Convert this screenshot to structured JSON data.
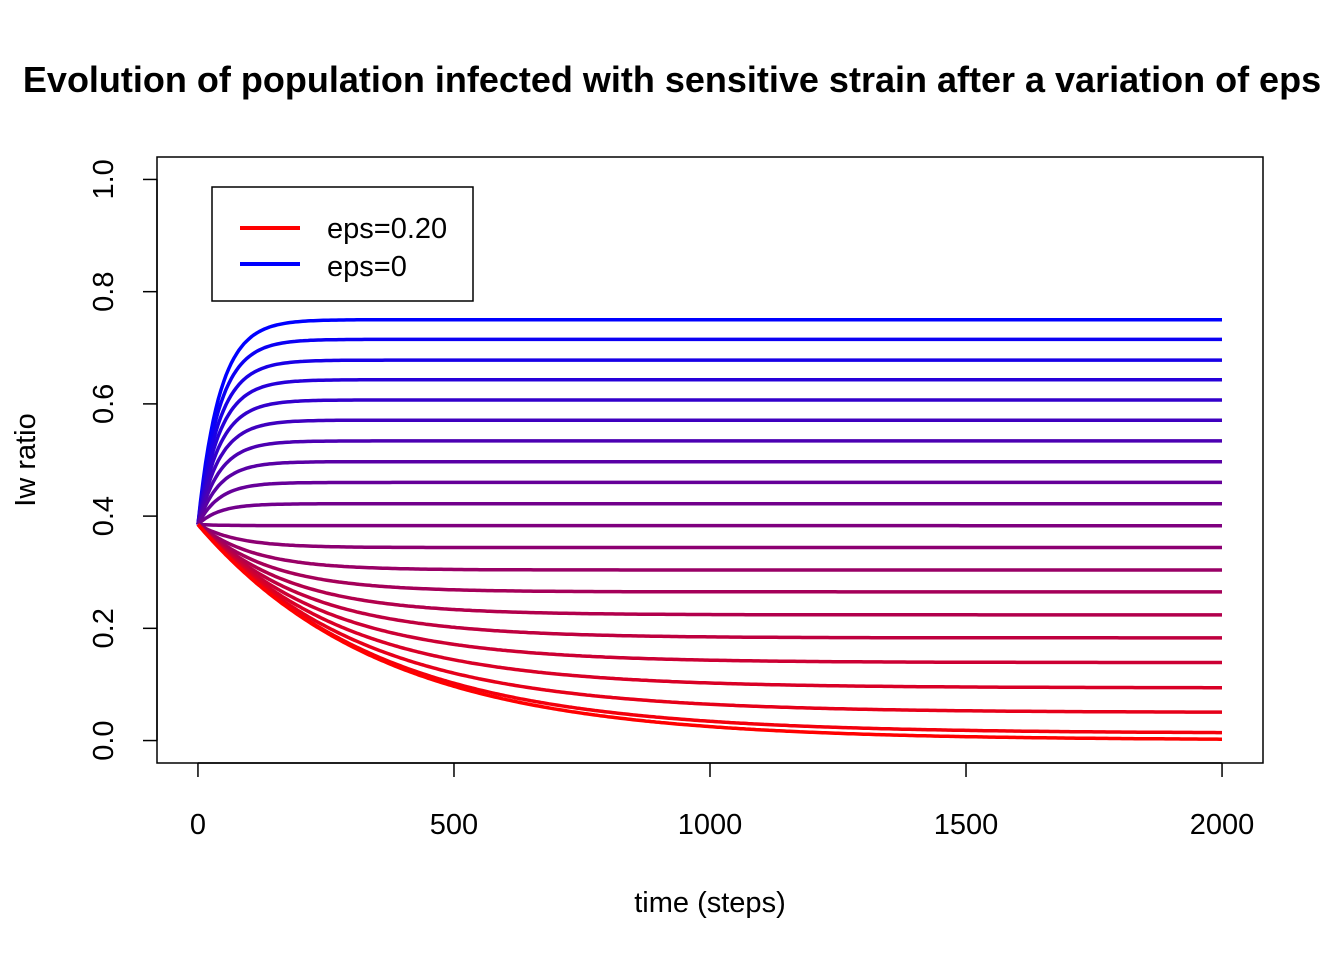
{
  "chart_data": {
    "type": "line",
    "title": "Evolution of population infected with sensitive strain after a variation of eps",
    "xlabel": "time (steps)",
    "ylabel": "Iw ratio",
    "xlim": [
      -80,
      2080
    ],
    "ylim": [
      -0.04,
      1.04
    ],
    "x_ticks": [
      0,
      500,
      1000,
      1500,
      2000
    ],
    "y_ticks": [
      0.0,
      0.2,
      0.4,
      0.6,
      0.8,
      1.0
    ],
    "x_tick_labels": [
      "0",
      "500",
      "1000",
      "1500",
      "2000"
    ],
    "y_tick_labels": [
      "0.0",
      "0.2",
      "0.4",
      "0.6",
      "0.8",
      "1.0"
    ],
    "grid": false,
    "legend_position": "top-left",
    "legend": [
      {
        "label": "eps=0.20",
        "color": "#ff0000"
      },
      {
        "label": "eps=0",
        "color": "#0000ff"
      }
    ],
    "x_range": [
      0,
      2000
    ],
    "initial_value": 0.385,
    "series": [
      {
        "color": "#0000ff",
        "final": 0.75
      },
      {
        "color": "#0c00f3",
        "final": 0.715
      },
      {
        "color": "#1900e6",
        "final": 0.678
      },
      {
        "color": "#2600d9",
        "final": 0.643
      },
      {
        "color": "#3300cc",
        "final": 0.607
      },
      {
        "color": "#3f00bf",
        "final": 0.571
      },
      {
        "color": "#4c00b2",
        "final": 0.534
      },
      {
        "color": "#5900a5",
        "final": 0.497
      },
      {
        "color": "#660099",
        "final": 0.46
      },
      {
        "color": "#72008c",
        "final": 0.422
      },
      {
        "color": "#7f007f",
        "final": 0.383
      },
      {
        "color": "#8c0072",
        "final": 0.344
      },
      {
        "color": "#990066",
        "final": 0.304
      },
      {
        "color": "#a50059",
        "final": 0.265
      },
      {
        "color": "#b2004c",
        "final": 0.224
      },
      {
        "color": "#bf003f",
        "final": 0.183
      },
      {
        "color": "#cc0033",
        "final": 0.139
      },
      {
        "color": "#d90026",
        "final": 0.094
      },
      {
        "color": "#e60019",
        "final": 0.05
      },
      {
        "color": "#f3000c",
        "final": 0.013
      },
      {
        "color": "#ff0000",
        "final": 0.001
      }
    ]
  }
}
